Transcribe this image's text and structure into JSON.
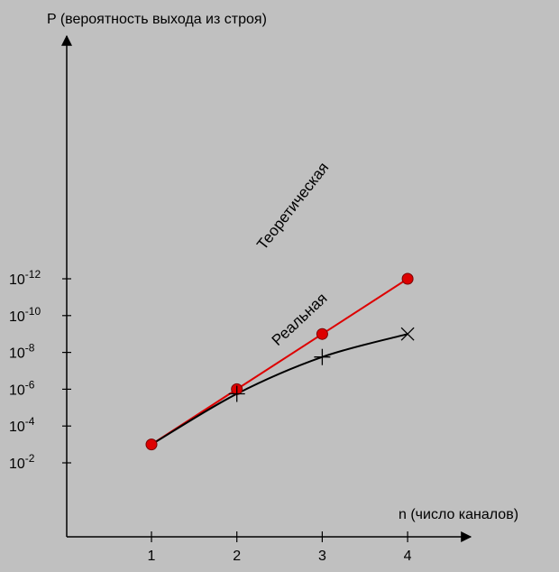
{
  "chart_data": {
    "type": "line",
    "ylabel": "P (вероятность выхода из строя)",
    "xlabel": "n (число каналов)",
    "x": [
      1,
      2,
      3,
      4
    ],
    "x_ticks": [
      "1",
      "2",
      "3",
      "4"
    ],
    "y_scale": "log",
    "y_ticks": [
      {
        "exp": -2,
        "base": "10",
        "sup": "-2"
      },
      {
        "exp": -4,
        "base": "10",
        "sup": "-4"
      },
      {
        "exp": -6,
        "base": "10",
        "sup": "-6"
      },
      {
        "exp": -8,
        "base": "10",
        "sup": "-8"
      },
      {
        "exp": -10,
        "base": "10",
        "sup": "-10"
      },
      {
        "exp": -12,
        "base": "10",
        "sup": "-12"
      }
    ],
    "series": [
      {
        "name": "Теоретическая",
        "color": "#dd0000",
        "marker": "filled-circle",
        "log10_values": [
          -3,
          -6,
          -9,
          -12
        ]
      },
      {
        "name": "Реальная",
        "color": "#000000",
        "marker": "cross",
        "log10_values": [
          -3,
          -5.75,
          -7.75,
          -9
        ]
      }
    ]
  }
}
